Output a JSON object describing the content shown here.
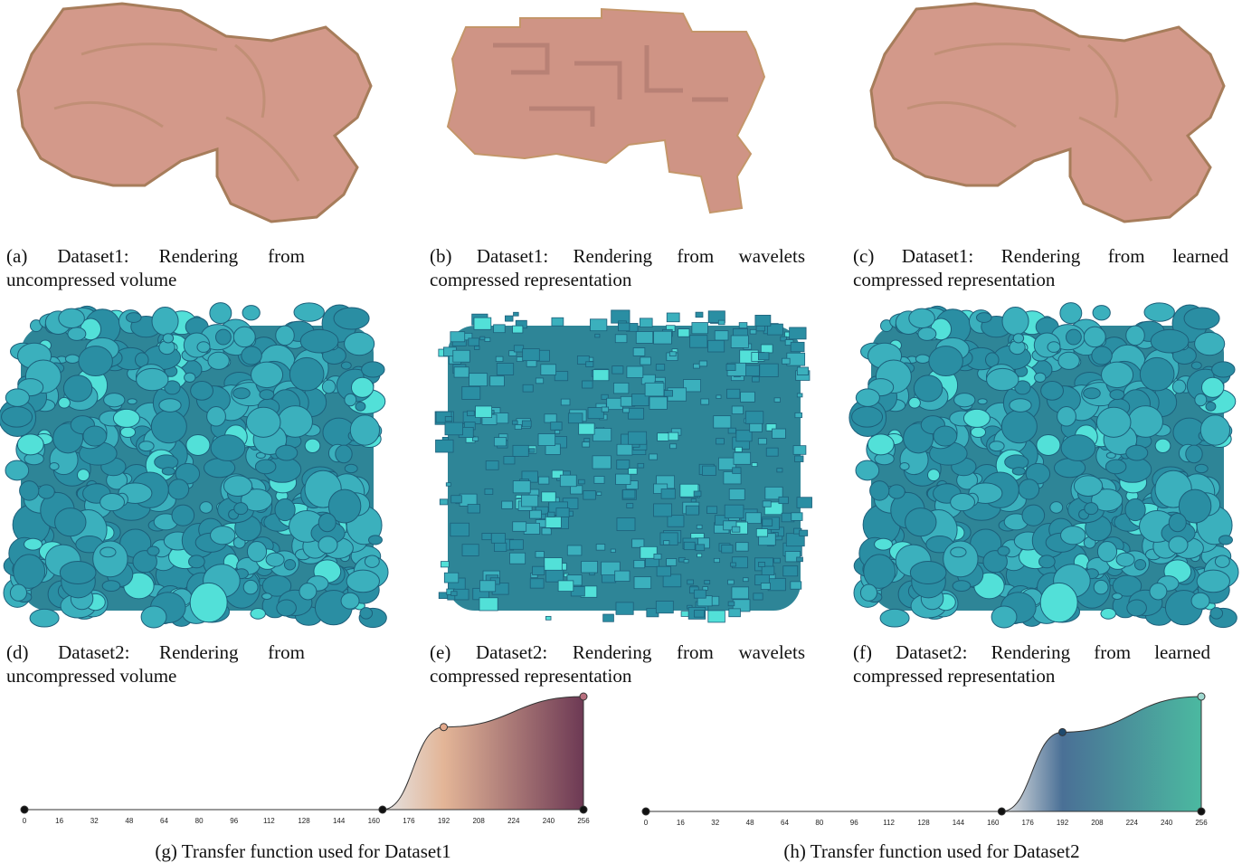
{
  "panels": [
    {
      "caption": "(a) Dataset1: Rendering from uncompressed volume"
    },
    {
      "caption": "(b) Dataset1: Rendering from wavelets compressed representation"
    },
    {
      "caption": "(c) Dataset1: Rendering from learned compressed representation"
    },
    {
      "caption": "(d) Dataset2: Rendering from uncompressed volume"
    },
    {
      "caption": "(e) Dataset2: Rendering from wavelets compressed representation"
    },
    {
      "caption": "(f) Dataset2: Rendering from learned compressed representation"
    }
  ],
  "chart_data": [
    {
      "type": "area",
      "caption": "(g) Transfer function used for Dataset1",
      "x": [
        0,
        164,
        192,
        256,
        256
      ],
      "y": [
        0,
        0,
        0.73,
        1,
        0
      ],
      "xlim": [
        0,
        256
      ],
      "ylim": [
        0,
        1
      ],
      "xticks": [
        0,
        16,
        32,
        48,
        64,
        80,
        96,
        112,
        128,
        144,
        160,
        176,
        192,
        208,
        224,
        240,
        256
      ],
      "point_colors": [
        "#111111",
        "#111111",
        "#e3a98c",
        "#b86f7e",
        "#111111"
      ],
      "line_color": "#333333",
      "fill_stops": [
        {
          "x": 164,
          "color": "#e4e4e4"
        },
        {
          "x": 192,
          "color": "#e3b597"
        },
        {
          "x": 256,
          "color": "#6d3954"
        }
      ]
    },
    {
      "type": "area",
      "caption": "(h) Transfer function used for Dataset2",
      "x": [
        0,
        164,
        192,
        256,
        256
      ],
      "y": [
        0,
        0,
        0.69,
        1,
        0
      ],
      "xlim": [
        0,
        256
      ],
      "ylim": [
        0,
        1
      ],
      "xticks": [
        0,
        16,
        32,
        48,
        64,
        80,
        96,
        112,
        128,
        144,
        160,
        176,
        192,
        208,
        224,
        240,
        256
      ],
      "point_colors": [
        "#111111",
        "#111111",
        "#1f4a6e",
        "#9fd9d0",
        "#111111"
      ],
      "line_color": "#333333",
      "fill_stops": [
        {
          "x": 164,
          "color": "#e4e4e4"
        },
        {
          "x": 192,
          "color": "#4a7096"
        },
        {
          "x": 256,
          "color": "#4bb9a0"
        }
      ]
    }
  ]
}
